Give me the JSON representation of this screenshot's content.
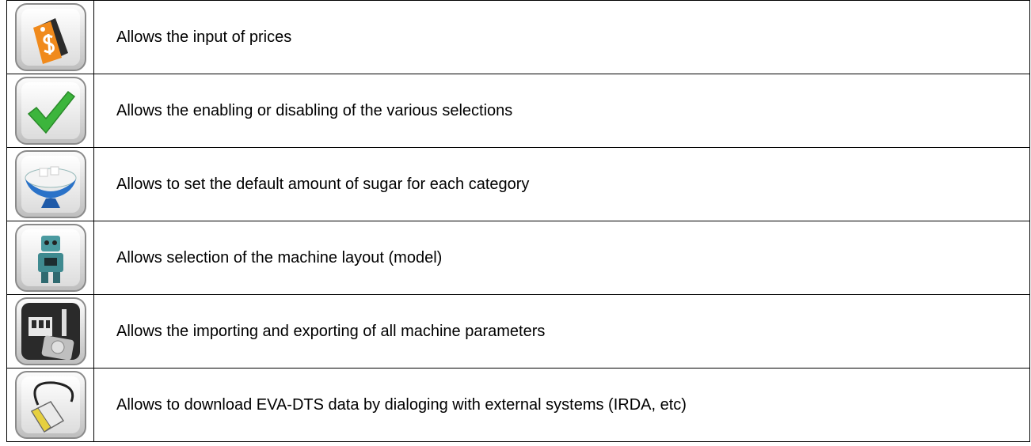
{
  "table": {
    "rows": [
      {
        "description": "Allows the input of prices"
      },
      {
        "description": "Allows the enabling or disabling of the various selections"
      },
      {
        "description": "Allows to set the default amount of sugar for each category"
      },
      {
        "description": "Allows selection of the machine layout (model)"
      },
      {
        "description": "Allows the importing and exporting of all machine parameters"
      },
      {
        "description": "Allows to download EVA-DTS data by dialoging with external systems (IRDA, etc)"
      }
    ]
  }
}
